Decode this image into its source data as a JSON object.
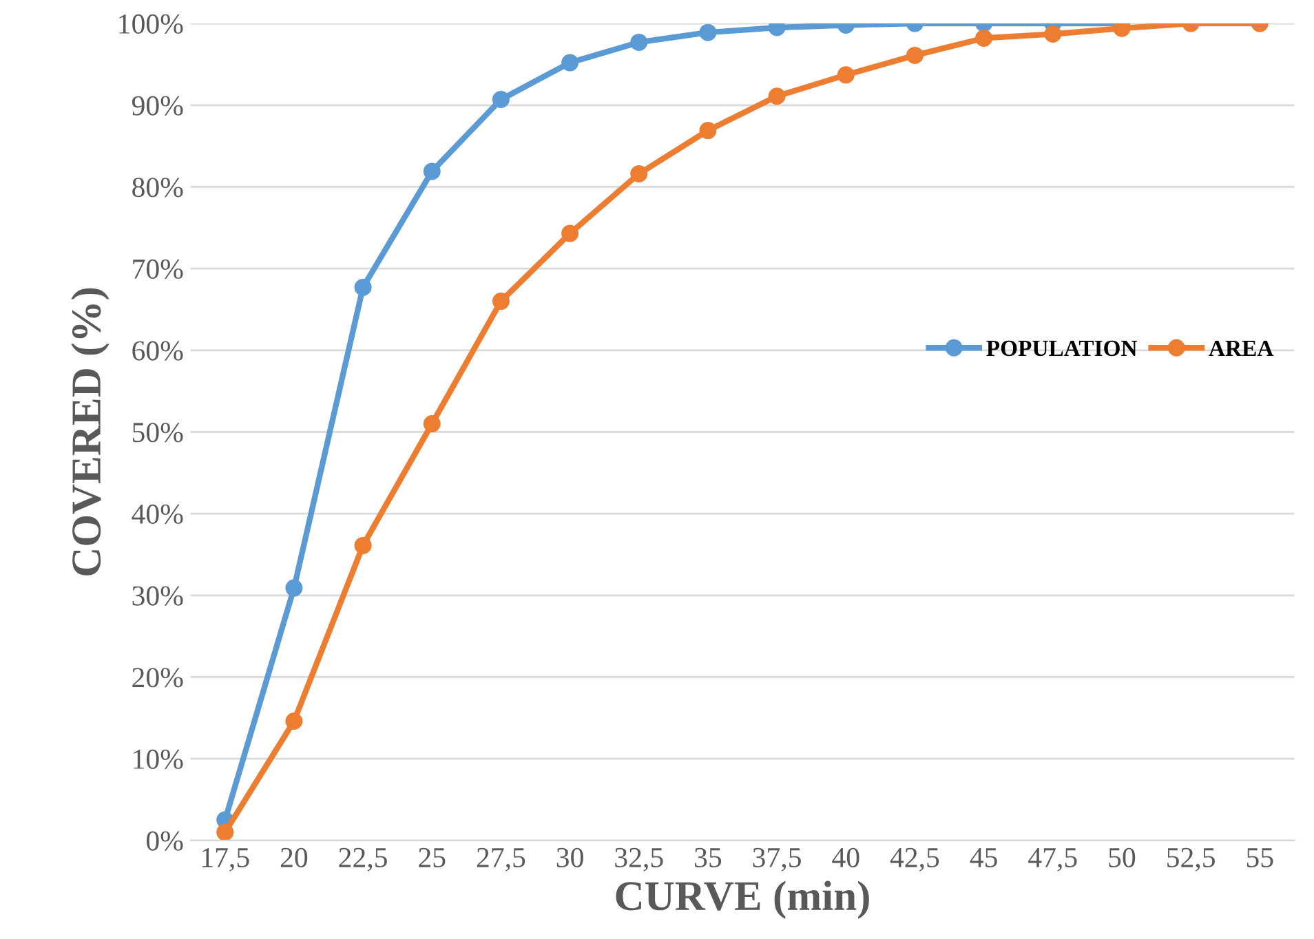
{
  "chart_data": {
    "type": "line",
    "xlabel": "CURVE (min)",
    "ylabel": "COVERED (%)",
    "categories": [
      "17,5",
      "20",
      "22,5",
      "25",
      "27,5",
      "30",
      "32,5",
      "35",
      "37,5",
      "40",
      "42,5",
      "45",
      "47,5",
      "50",
      "52,5",
      "55"
    ],
    "series": [
      {
        "name": "POPULATION",
        "color": "#5b9bd5",
        "values": [
          2.5,
          30.9,
          67.7,
          81.9,
          90.7,
          95.2,
          97.7,
          98.9,
          99.5,
          99.8,
          100,
          100,
          100,
          100,
          null,
          null
        ]
      },
      {
        "name": "AREA",
        "color": "#ed7d31",
        "values": [
          1.0,
          14.6,
          36.1,
          51.0,
          66.0,
          74.3,
          81.6,
          86.9,
          91.1,
          93.7,
          96.1,
          98.2,
          98.7,
          99.4,
          100,
          100
        ]
      }
    ],
    "ylim": [
      0,
      100
    ],
    "yticks": [
      {
        "value": 0,
        "label": "0%"
      },
      {
        "value": 10,
        "label": "10%"
      },
      {
        "value": 20,
        "label": "20%"
      },
      {
        "value": 30,
        "label": "30%"
      },
      {
        "value": 40,
        "label": "40%"
      },
      {
        "value": 50,
        "label": "50%"
      },
      {
        "value": 60,
        "label": "60%"
      },
      {
        "value": 70,
        "label": "70%"
      },
      {
        "value": 80,
        "label": "80%"
      },
      {
        "value": 90,
        "label": "90%"
      },
      {
        "value": 100,
        "label": "100%"
      }
    ],
    "grid": "y",
    "legend": "right",
    "marker": "circle",
    "line_style": "solid"
  }
}
